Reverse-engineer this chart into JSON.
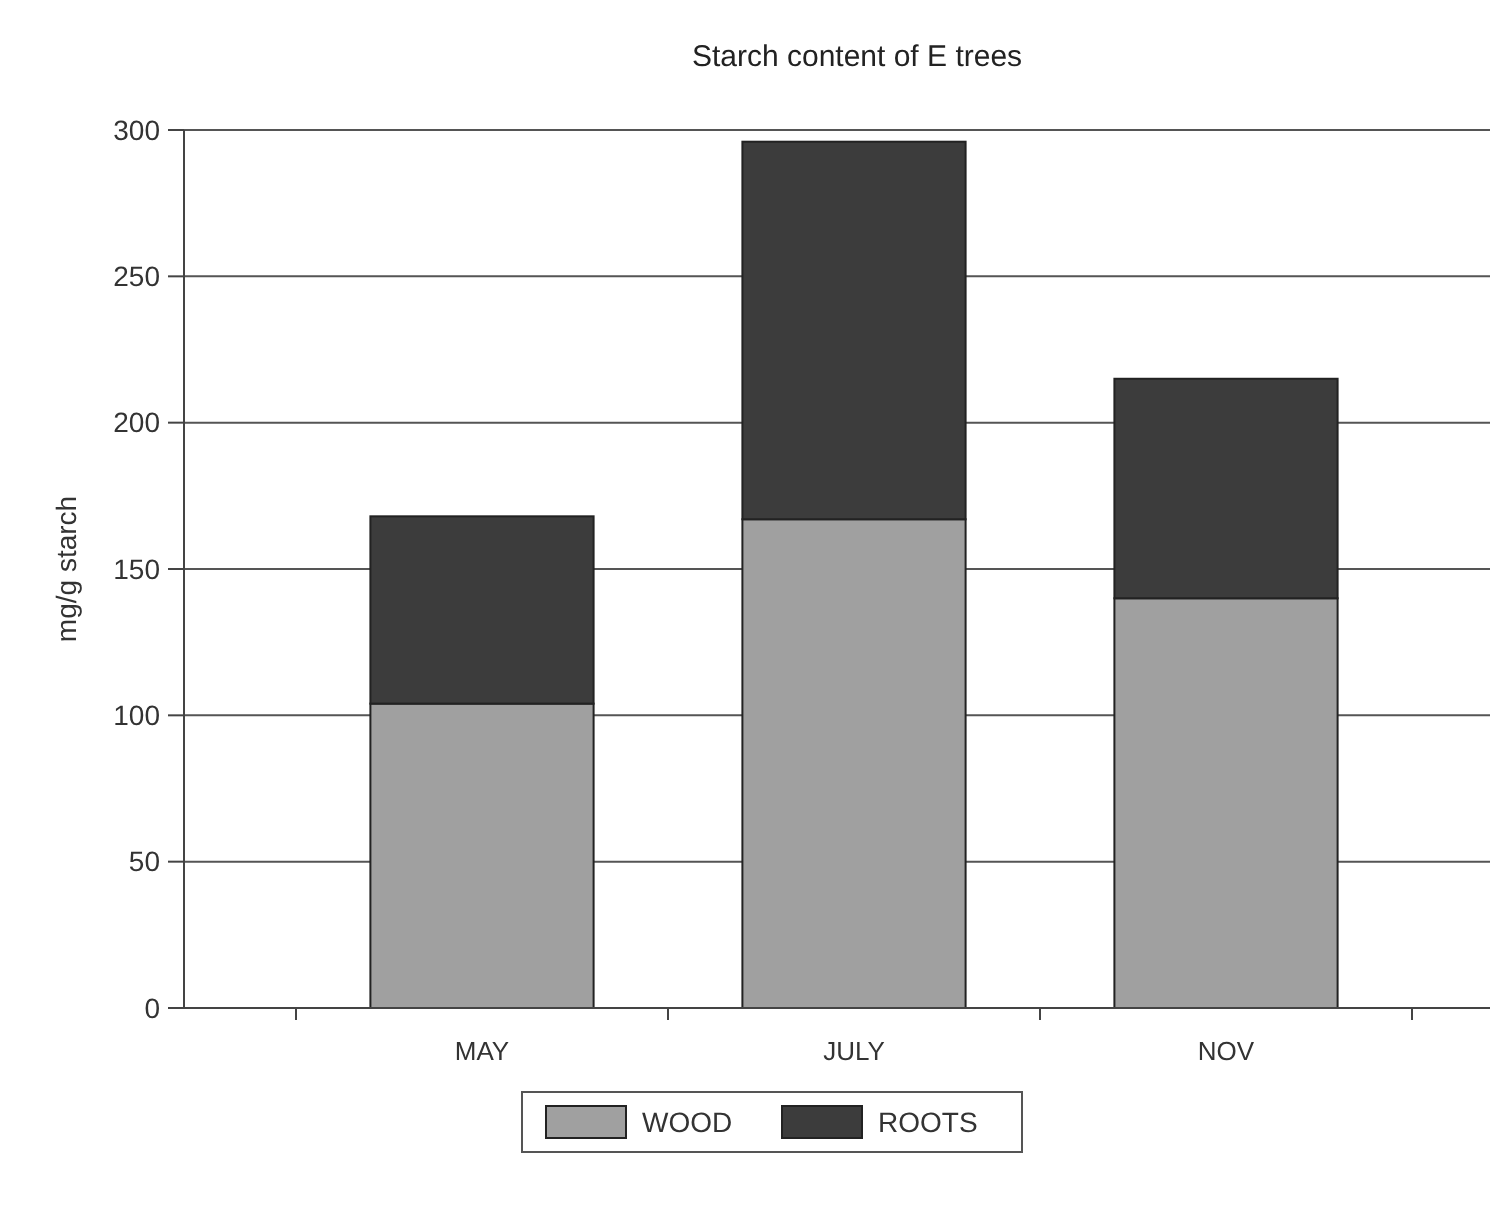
{
  "chart_data": {
    "type": "bar",
    "title": "Starch content of E trees",
    "ylabel": "mg/g starch",
    "categories": [
      "MAY",
      "JULY",
      "NOV"
    ],
    "stacked": true,
    "series": [
      {
        "name": "WOOD",
        "color": "#a0a0a0",
        "values": [
          104,
          167,
          140
        ]
      },
      {
        "name": "ROOTS",
        "color": "#3c3c3c",
        "values": [
          64,
          129,
          75
        ]
      }
    ],
    "ylim": [
      0,
      300
    ],
    "yticks": [
      0,
      50,
      100,
      150,
      200,
      250,
      300
    ],
    "grid": "y",
    "legend": "bottom"
  }
}
